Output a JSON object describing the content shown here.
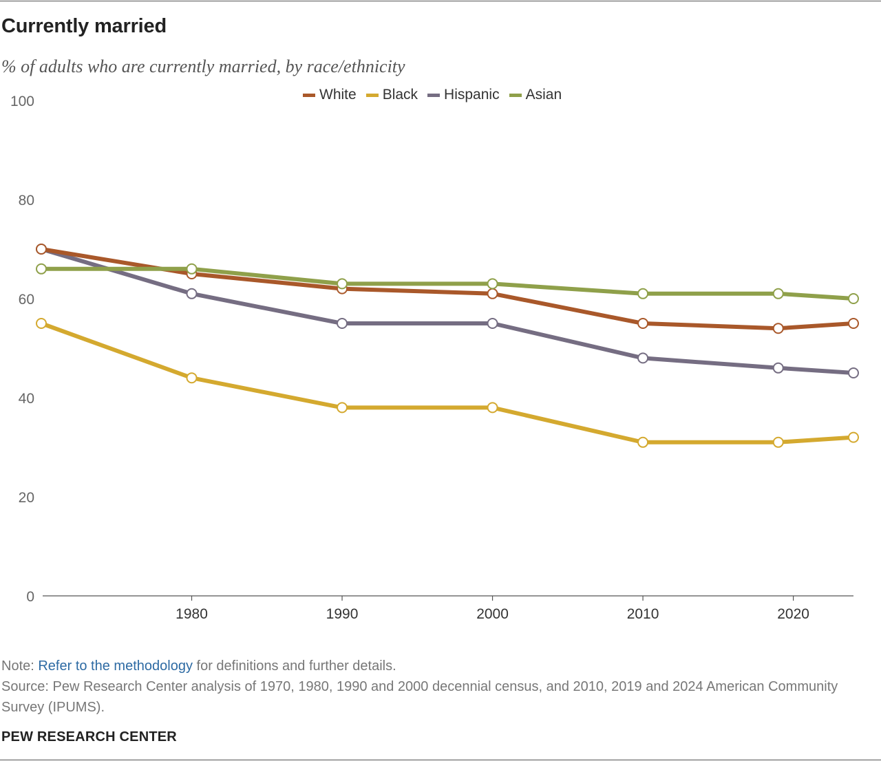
{
  "header": {
    "title": "Currently married",
    "subtitle": "% of adults who are currently married, by race/ethnicity"
  },
  "legend": [
    {
      "name": "White",
      "color": "#a9582a"
    },
    {
      "name": "Black",
      "color": "#d4a92f"
    },
    {
      "name": "Hispanic",
      "color": "#756d82"
    },
    {
      "name": "Asian",
      "color": "#8fa04a"
    }
  ],
  "chart_data": {
    "type": "line",
    "title": "Currently married",
    "subtitle": "% of adults who are currently married, by race/ethnicity",
    "xlabel": "",
    "ylabel": "",
    "x": [
      1970,
      1980,
      1990,
      2000,
      2010,
      2019,
      2024
    ],
    "x_ticks": [
      "1980",
      "1990",
      "2000",
      "2010",
      "2020"
    ],
    "y_ticks": [
      "0",
      "20",
      "40",
      "60",
      "80",
      "100"
    ],
    "ylim": [
      0,
      100
    ],
    "xlim": [
      1970,
      2024
    ],
    "grid": false,
    "legend_position": "top",
    "series": [
      {
        "name": "White",
        "color": "#a9582a",
        "values": [
          70,
          65,
          62,
          61,
          55,
          54,
          55
        ]
      },
      {
        "name": "Black",
        "color": "#d4a92f",
        "values": [
          55,
          44,
          38,
          38,
          31,
          31,
          32
        ]
      },
      {
        "name": "Hispanic",
        "color": "#756d82",
        "values": [
          70,
          61,
          55,
          55,
          48,
          46,
          45
        ]
      },
      {
        "name": "Asian",
        "color": "#8fa04a",
        "values": [
          66,
          66,
          63,
          63,
          61,
          61,
          60
        ]
      }
    ]
  },
  "notes": {
    "note_prefix": "Note: ",
    "note_link": "Refer to the methodology",
    "note_suffix": " for definitions and further details.",
    "source": "Source: Pew Research Center analysis of 1970, 1980, 1990 and 2000 decennial census, and 2010, 2019 and 2024 American Community Survey (IPUMS)."
  },
  "footer": {
    "brand": "PEW RESEARCH CENTER"
  }
}
